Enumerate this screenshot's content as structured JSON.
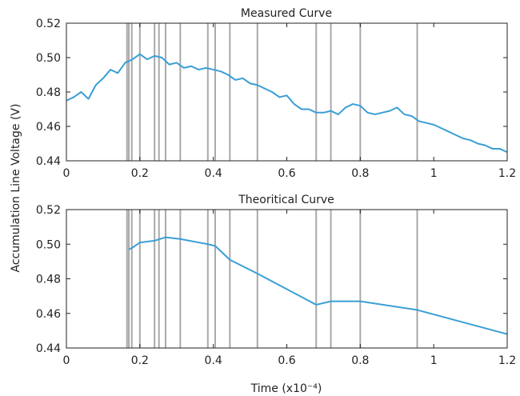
{
  "figure": {
    "ylabel": "Accumulation Line Voltage (V)",
    "xlabel": "Time (x10⁻⁴)"
  },
  "chart_data": [
    {
      "type": "line",
      "title": "Measured Curve",
      "xlim": [
        0,
        1.2
      ],
      "ylim": [
        0.44,
        0.52
      ],
      "xticks": [
        "0",
        "0.2",
        "0.4",
        "0.6",
        "0.8",
        "1",
        "1.2"
      ],
      "yticks": [
        "0.44",
        "0.46",
        "0.48",
        "0.50",
        "0.52"
      ],
      "grid": false,
      "line_color": "#3a9fd6",
      "vline_color": "#a9a9a9",
      "vlines": [
        0.165,
        0.17,
        0.178,
        0.2,
        0.24,
        0.252,
        0.27,
        0.31,
        0.385,
        0.405,
        0.445,
        0.52,
        0.68,
        0.72,
        0.8,
        0.955
      ],
      "series": [
        {
          "x": [
            0,
            0.02,
            0.04,
            0.06,
            0.08,
            0.1,
            0.12,
            0.14,
            0.16,
            0.18,
            0.2,
            0.22,
            0.24,
            0.26,
            0.28,
            0.3,
            0.32,
            0.34,
            0.36,
            0.38,
            0.4,
            0.42,
            0.44,
            0.46,
            0.48,
            0.5,
            0.52,
            0.54,
            0.56,
            0.58,
            0.6,
            0.62,
            0.64,
            0.66,
            0.68,
            0.7,
            0.72,
            0.74,
            0.76,
            0.78,
            0.8,
            0.82,
            0.84,
            0.86,
            0.88,
            0.9,
            0.92,
            0.94,
            0.96,
            0.98,
            1.0,
            1.02,
            1.04,
            1.06,
            1.08,
            1.1,
            1.12,
            1.14,
            1.16,
            1.18,
            1.2
          ],
          "values": [
            0.475,
            0.477,
            0.48,
            0.476,
            0.484,
            0.488,
            0.493,
            0.491,
            0.497,
            0.499,
            0.502,
            0.499,
            0.501,
            0.5,
            0.496,
            0.497,
            0.494,
            0.495,
            0.493,
            0.494,
            0.493,
            0.492,
            0.49,
            0.487,
            0.488,
            0.485,
            0.484,
            0.482,
            0.48,
            0.477,
            0.478,
            0.473,
            0.47,
            0.47,
            0.468,
            0.468,
            0.469,
            0.467,
            0.471,
            0.473,
            0.472,
            0.468,
            0.467,
            0.468,
            0.469,
            0.471,
            0.467,
            0.466,
            0.463,
            0.462,
            0.461,
            0.459,
            0.457,
            0.455,
            0.453,
            0.452,
            0.45,
            0.449,
            0.447,
            0.447,
            0.445
          ]
        }
      ]
    },
    {
      "type": "line",
      "title": "Theoritical Curve",
      "xlim": [
        0,
        1.2
      ],
      "ylim": [
        0.44,
        0.52
      ],
      "xticks": [
        "0",
        "0.2",
        "0.4",
        "0.6",
        "0.8",
        "1",
        "1.2"
      ],
      "yticks": [
        "0.44",
        "0.46",
        "0.48",
        "0.50",
        "0.52"
      ],
      "grid": false,
      "line_color": "#3a9fd6",
      "vline_color": "#a9a9a9",
      "vlines": [
        0.165,
        0.17,
        0.178,
        0.2,
        0.24,
        0.252,
        0.27,
        0.31,
        0.385,
        0.405,
        0.445,
        0.52,
        0.68,
        0.72,
        0.8,
        0.955
      ],
      "series": [
        {
          "x": [
            0.17,
            0.18,
            0.2,
            0.24,
            0.27,
            0.31,
            0.385,
            0.405,
            0.445,
            0.52,
            0.68,
            0.72,
            0.8,
            0.955,
            1.2
          ],
          "values": [
            0.497,
            0.498,
            0.501,
            0.502,
            0.504,
            0.503,
            0.5,
            0.499,
            0.491,
            0.483,
            0.465,
            0.467,
            0.467,
            0.462,
            0.448
          ]
        }
      ]
    }
  ]
}
